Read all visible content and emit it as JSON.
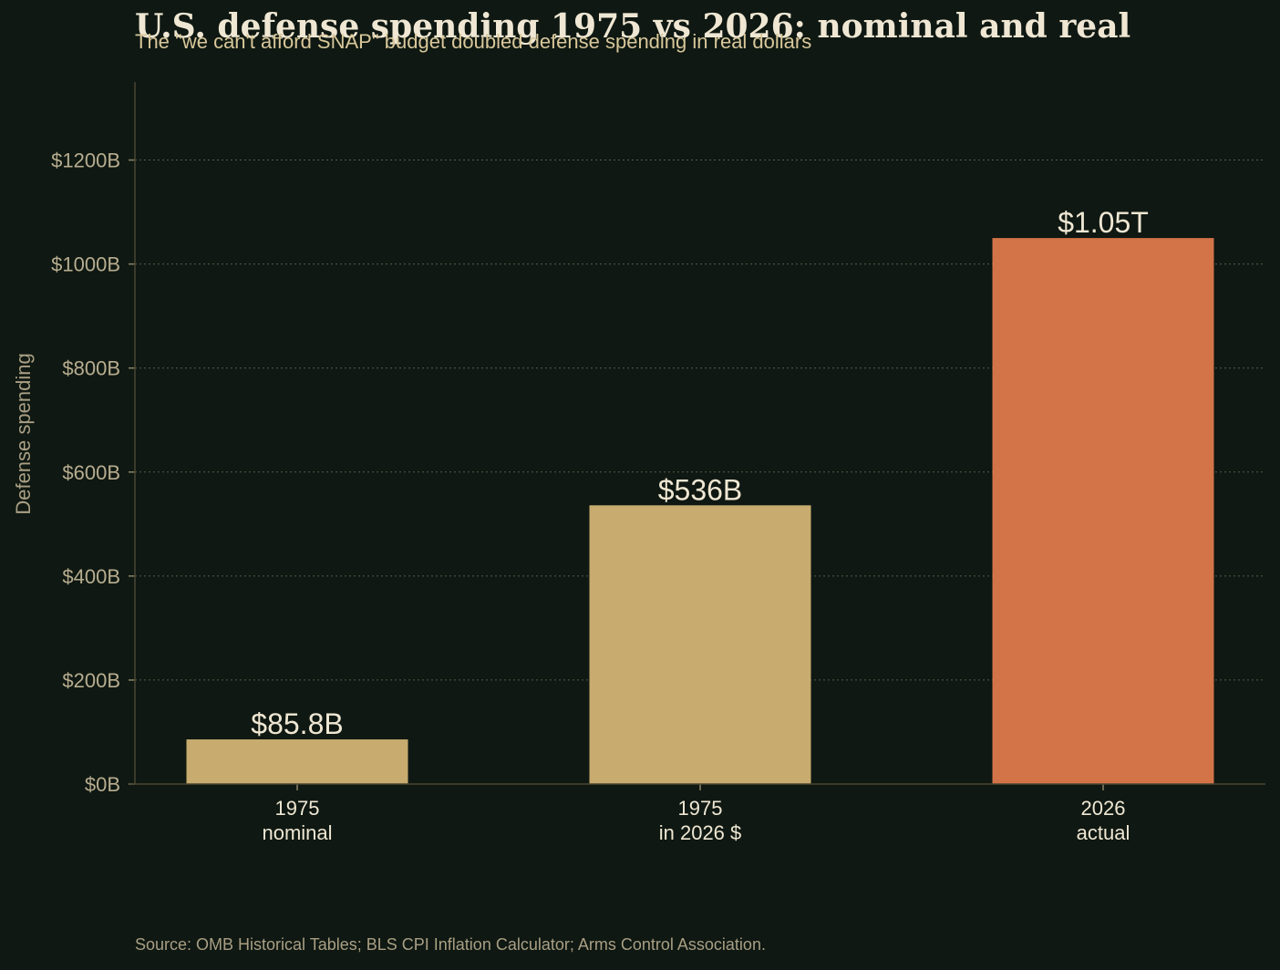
{
  "chart_data": {
    "type": "bar",
    "title": "U.S. defense spending 1975 vs 2026: nominal and real",
    "subtitle": "The \"we can't afford SNAP\" budget doubled defense spending in real dollars",
    "ylabel": "Defense spending",
    "xlabel": "",
    "categories": [
      [
        "1975",
        "nominal"
      ],
      [
        "1975",
        "in 2026 $"
      ],
      [
        "2026",
        "actual"
      ]
    ],
    "values": [
      85.8,
      536,
      1050
    ],
    "unit": "billion USD",
    "data_labels": [
      "$85.8B",
      "$536B",
      "$1.05T"
    ],
    "bar_colors": [
      "#c8ab6f",
      "#c8ab6f",
      "#d27448"
    ],
    "ylim": [
      0,
      1350
    ],
    "yticks": [
      0,
      200,
      400,
      600,
      800,
      1000,
      1200
    ],
    "ytick_labels": [
      "$0B",
      "$200B",
      "$400B",
      "$600B",
      "$800B",
      "$1000B",
      "$1200B"
    ],
    "grid": "horizontal dotted",
    "legend": "none"
  },
  "source": "Source: OMB Historical Tables; BLS CPI Inflation Calculator; Arms Control Association.",
  "colors": {
    "background": "#0f1812",
    "title": "#efe7d3",
    "subtitle": "#d8c79a",
    "axis": "#4a4632",
    "grid": "#5a5a4a"
  }
}
